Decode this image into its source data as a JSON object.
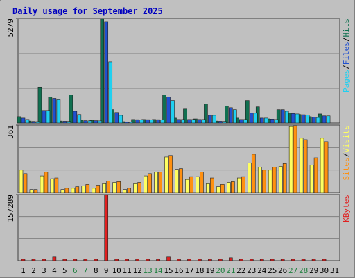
{
  "chart_data": [
    {
      "type": "bar",
      "title": "Daily usage for September 2025",
      "categories": [
        "1",
        "2",
        "3",
        "4",
        "5",
        "6",
        "7",
        "8",
        "9",
        "10",
        "11",
        "12",
        "13",
        "14",
        "15",
        "16",
        "17",
        "18",
        "19",
        "20",
        "21",
        "22",
        "23",
        "24",
        "25",
        "26",
        "27",
        "28",
        "29",
        "30",
        "31"
      ],
      "category_colors": [
        "#000000",
        "#000000",
        "#000000",
        "#000000",
        "#000000",
        "#208040",
        "#208040",
        "#000000",
        "#000000",
        "#000000",
        "#000000",
        "#000000",
        "#208040",
        "#208040",
        "#000000",
        "#000000",
        "#000000",
        "#000000",
        "#000000",
        "#208040",
        "#208040",
        "#000000",
        "#000000",
        "#000000",
        "#000000",
        "#000000",
        "#208040",
        "#208040",
        "#000000",
        "#000000",
        "#000000"
      ],
      "ylim": [
        0,
        5279
      ],
      "yticks": [
        5279
      ],
      "legend_separator": "/",
      "series": [
        {
          "name": "Hits",
          "color": "#107050",
          "values": [
            320,
            100,
            1820,
            1320,
            100,
            1430,
            140,
            140,
            5279,
            680,
            70,
            180,
            180,
            180,
            1430,
            250,
            710,
            210,
            960,
            100,
            860,
            250,
            1140,
            820,
            210,
            680,
            500,
            430,
            320,
            460,
            null
          ]
        },
        {
          "name": "Files",
          "color": "#2050d0",
          "values": [
            250,
            80,
            640,
            1250,
            90,
            600,
            120,
            120,
            5140,
            535,
            60,
            170,
            170,
            170,
            1320,
            180,
            180,
            180,
            390,
            90,
            780,
            180,
            500,
            250,
            200,
            680,
            480,
            420,
            300,
            360,
            null
          ]
        },
        {
          "name": "Pages",
          "color": "#20d0f0",
          "values": [
            180,
            70,
            640,
            1180,
            80,
            430,
            110,
            110,
            3100,
            390,
            50,
            160,
            160,
            160,
            1140,
            180,
            180,
            180,
            390,
            80,
            680,
            180,
            500,
            250,
            180,
            600,
            460,
            400,
            280,
            360,
            null
          ]
        }
      ]
    },
    {
      "type": "bar",
      "ylim": [
        0,
        361
      ],
      "yticks": [
        361
      ],
      "legend_separator": "/",
      "series": [
        {
          "name": "Visits",
          "color": "#ffff60",
          "values": [
            120,
            16,
            89,
            74,
            16,
            23,
            35,
            23,
            47,
            54,
            16,
            47,
            89,
            109,
            190,
            124,
            70,
            85,
            47,
            31,
            54,
            78,
            159,
            136,
            120,
            140,
            353,
            291,
            147,
            291,
            null
          ]
        },
        {
          "name": "Sites",
          "color": "#ff9010",
          "values": [
            101,
            16,
            109,
            78,
            23,
            31,
            43,
            39,
            62,
            58,
            23,
            54,
            101,
            109,
            198,
            128,
            85,
            109,
            78,
            43,
            58,
            85,
            205,
            120,
            136,
            155,
            357,
            283,
            186,
            272,
            null
          ]
        }
      ]
    },
    {
      "type": "bar",
      "ylim": [
        0,
        157289
      ],
      "yticks": [
        157289
      ],
      "series": [
        {
          "name": "KBytes",
          "color": "#e02020",
          "values": [
            3400,
            3400,
            3400,
            8600,
            3400,
            3400,
            3400,
            3400,
            157289,
            3400,
            3400,
            3400,
            3400,
            3400,
            8600,
            3400,
            3400,
            3400,
            3400,
            3400,
            6900,
            3400,
            3400,
            3400,
            3400,
            3400,
            3400,
            3400,
            3400,
            3400,
            null
          ]
        }
      ]
    }
  ]
}
